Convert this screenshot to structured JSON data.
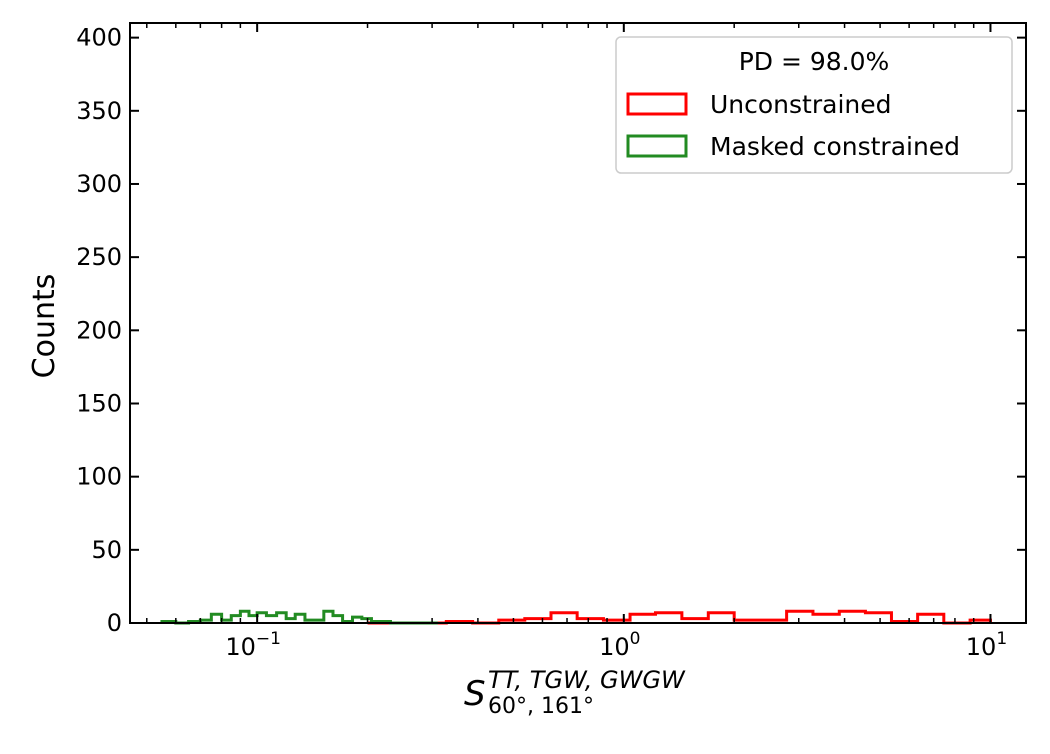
{
  "chart_data": {
    "type": "histogram",
    "xscale": "log",
    "xlim": [
      0.045,
      12.5
    ],
    "ylim": [
      0,
      410
    ],
    "grid": false,
    "legend_placement": "top-right",
    "xlabel": {
      "base": "S",
      "superscript": "TT, TGW, GWGW",
      "subscript": "60°, 161°"
    },
    "ylabel": "Counts",
    "x_ticks": [
      {
        "value": 0.1,
        "base": "10",
        "exp": "−1"
      },
      {
        "value": 1,
        "base": "10",
        "exp": "0"
      },
      {
        "value": 10,
        "base": "10",
        "exp": "1"
      }
    ],
    "y_ticks": [
      0,
      50,
      100,
      150,
      200,
      250,
      300,
      350,
      400
    ],
    "legend": {
      "title": "PD  = 98.0%"
    },
    "series": [
      {
        "name": "Unconstrained",
        "color": "#ff0000",
        "edges": [
          0.2,
          0.236,
          0.278,
          0.328,
          0.387,
          0.456,
          0.537,
          0.633,
          0.746,
          0.88,
          1.04,
          1.22,
          1.44,
          1.7,
          2.0,
          2.36,
          2.78,
          3.28,
          3.87,
          4.56,
          5.37,
          6.33,
          7.46,
          8.8,
          10.0
        ],
        "counts": [
          0,
          0,
          0,
          1,
          0,
          2,
          3,
          7,
          3,
          2,
          6,
          7,
          3,
          7,
          2,
          2,
          8,
          6,
          8,
          7,
          1,
          6,
          0,
          2
        ]
      },
      {
        "name": "Masked constrained",
        "color": "#228b22",
        "edges": [
          0.055,
          0.06,
          0.065,
          0.07,
          0.075,
          0.08,
          0.085,
          0.09,
          0.095,
          0.1,
          0.106,
          0.113,
          0.12,
          0.127,
          0.135,
          0.143,
          0.152,
          0.161,
          0.171,
          0.182,
          0.193,
          0.205,
          0.218,
          0.231,
          0.245,
          0.26,
          0.276,
          0.293,
          0.311
        ],
        "counts": [
          1,
          0,
          1,
          2,
          6,
          2,
          5,
          8,
          5,
          7,
          5,
          7,
          3,
          6,
          2,
          2,
          8,
          5,
          1,
          4,
          3,
          1,
          1,
          0,
          0,
          0,
          0,
          0
        ]
      }
    ]
  }
}
